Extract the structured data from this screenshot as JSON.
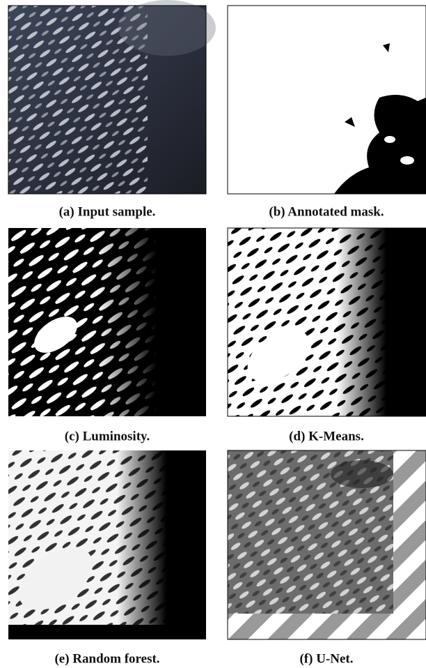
{
  "figure": {
    "panels": [
      {
        "caption": "(a) Input sample."
      },
      {
        "caption": "(b) Annotated mask."
      },
      {
        "caption": "(c) Luminosity."
      },
      {
        "caption": "(d) K-Means."
      },
      {
        "caption": "(e) Random forest."
      },
      {
        "caption": "(f) U-Net."
      }
    ]
  }
}
